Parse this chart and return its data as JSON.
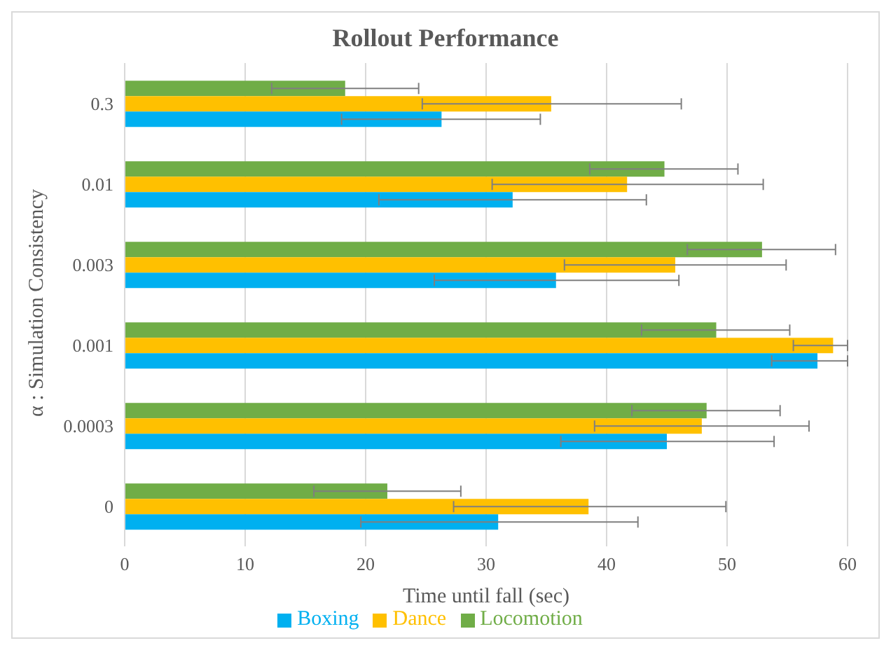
{
  "chart_data": {
    "type": "bar",
    "orientation": "horizontal",
    "title": "Rollout Performance",
    "xlabel": "Time until fall (sec)",
    "ylabel": "α : Simulation Consistency",
    "categories": [
      "0.3",
      "0.01",
      "0.003",
      "0.001",
      "0.0003",
      "0"
    ],
    "series": [
      {
        "name": "Locomotion",
        "color": "#70ad47",
        "values": [
          18.3,
          44.8,
          52.9,
          49.1,
          48.3,
          21.8
        ],
        "errors": [
          [
            12.2,
            24.4
          ],
          [
            38.6,
            50.9
          ],
          [
            46.7,
            59.0
          ],
          [
            42.9,
            55.2
          ],
          [
            42.1,
            54.4
          ],
          [
            15.7,
            27.9
          ]
        ]
      },
      {
        "name": "Dance",
        "color": "#ffc000",
        "values": [
          35.4,
          41.7,
          45.7,
          58.8,
          47.9,
          38.5
        ],
        "errors": [
          [
            24.7,
            46.2
          ],
          [
            30.5,
            53.0
          ],
          [
            36.5,
            54.9
          ],
          [
            55.5,
            60
          ],
          [
            39.0,
            56.8
          ],
          [
            27.3,
            49.9
          ]
        ]
      },
      {
        "name": "Boxing",
        "color": "#00b0f0",
        "values": [
          26.3,
          32.2,
          35.8,
          57.5,
          45.0,
          31.0
        ],
        "errors": [
          [
            18.0,
            34.5
          ],
          [
            21.1,
            43.3
          ],
          [
            25.7,
            46.0
          ],
          [
            53.7,
            60
          ],
          [
            36.2,
            53.9
          ],
          [
            19.6,
            42.6
          ]
        ]
      }
    ],
    "xlim": [
      0,
      60
    ],
    "xticks": [
      0,
      10,
      20,
      30,
      40,
      50,
      60
    ],
    "grid": "x",
    "legend": "bottom"
  }
}
